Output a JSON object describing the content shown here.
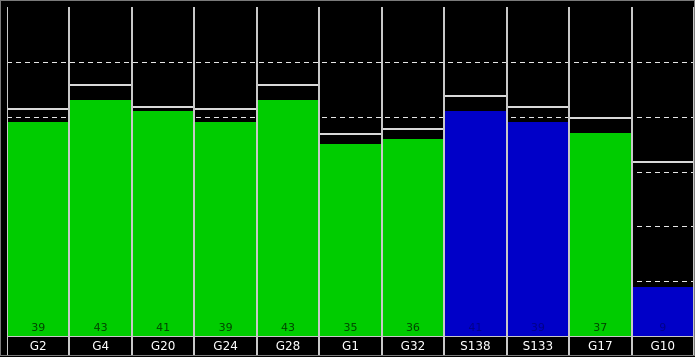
{
  "chart_data": {
    "type": "bar",
    "categories": [
      "G2",
      "G4",
      "G20",
      "G24",
      "G28",
      "G1",
      "G32",
      "S138",
      "S133",
      "G17",
      "G10"
    ],
    "values": [
      39,
      43,
      41,
      39,
      43,
      35,
      36,
      41,
      39,
      37,
      9
    ],
    "reference_levels": [
      41.5,
      46,
      42,
      41.5,
      46,
      37,
      38,
      44,
      42,
      40,
      32
    ],
    "series_colors": [
      "#00cc00",
      "#00cc00",
      "#00cc00",
      "#00cc00",
      "#00cc00",
      "#00cc00",
      "#00cc00",
      "#0000c8",
      "#0000c8",
      "#00cc00",
      "#0000c8"
    ],
    "ylim": [
      0,
      60
    ],
    "grid": true
  },
  "colors": {
    "background": "#000000",
    "gps": "#00cc00",
    "sbas": "#0000c8",
    "grid": "#ffffff"
  }
}
